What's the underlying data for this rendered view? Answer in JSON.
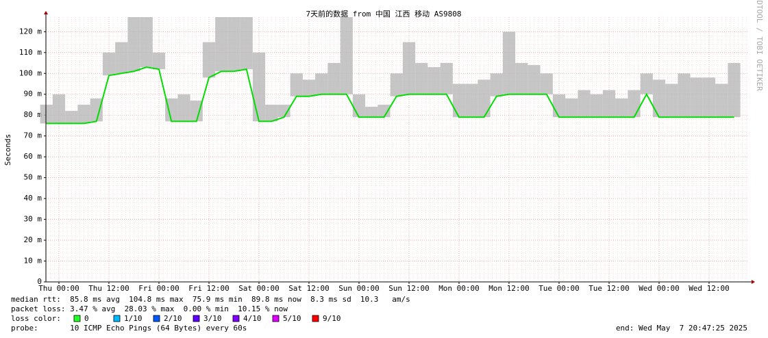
{
  "chart_data": {
    "type": "line",
    "title": "7天前的数据 from 中国 江西 移动 AS9808",
    "y_label": "Seconds",
    "watermark": "RRDTOOL / TOBI OETIKER",
    "categories": [
      null,
      "Thu 00:00",
      null,
      null,
      null,
      "Thu 12:00",
      null,
      null,
      null,
      "Fri 00:00",
      null,
      null,
      null,
      "Fri 12:00",
      null,
      null,
      null,
      "Sat 00:00",
      null,
      null,
      null,
      "Sat 12:00",
      null,
      null,
      null,
      "Sun 00:00",
      null,
      null,
      null,
      "Sun 12:00",
      null,
      null,
      null,
      "Mon 00:00",
      null,
      null,
      null,
      "Mon 12:00",
      null,
      null,
      null,
      "Tue 00:00",
      null,
      null,
      null,
      "Tue 12:00",
      null,
      null,
      null,
      "Wed 00:00",
      null,
      null,
      null,
      "Wed 12:00",
      null,
      null
    ],
    "series": [
      {
        "name": "median rtt",
        "color": "#00dd00",
        "values": [
          0.076,
          0.076,
          0.076,
          0.076,
          0.077,
          0.099,
          0.1,
          0.101,
          0.103,
          0.102,
          0.077,
          0.077,
          0.077,
          0.098,
          0.101,
          0.101,
          0.102,
          0.077,
          0.077,
          0.079,
          0.089,
          0.089,
          0.09,
          0.09,
          0.09,
          0.079,
          0.079,
          0.079,
          0.089,
          0.09,
          0.09,
          0.09,
          0.09,
          0.079,
          0.079,
          0.079,
          0.089,
          0.09,
          0.09,
          0.09,
          0.09,
          0.079,
          0.079,
          0.079,
          0.079,
          0.079,
          0.079,
          0.079,
          0.09,
          0.079,
          0.079,
          0.079,
          0.079,
          0.079,
          0.079,
          0.079
        ]
      }
    ],
    "smoke": {
      "color": "#b8b8b8",
      "values": [
        0.085,
        0.09,
        0.082,
        0.085,
        0.088,
        0.11,
        0.115,
        0.127,
        0.127,
        0.11,
        0.088,
        0.09,
        0.087,
        0.115,
        0.127,
        0.127,
        0.127,
        0.11,
        0.085,
        0.085,
        0.1,
        0.097,
        0.1,
        0.105,
        0.127,
        0.09,
        0.084,
        0.085,
        0.1,
        0.115,
        0.105,
        0.103,
        0.105,
        0.095,
        0.095,
        0.097,
        0.1,
        0.12,
        0.105,
        0.104,
        0.1,
        0.09,
        0.088,
        0.092,
        0.09,
        0.092,
        0.088,
        0.092,
        0.1,
        0.097,
        0.095,
        0.1,
        0.098,
        0.098,
        0.095,
        0.105
      ]
    },
    "ylim": [
      0,
      0.127
    ],
    "yticks": [
      0,
      {
        "value": 0.01,
        "label": "10 m"
      },
      {
        "value": 0.02,
        "label": "20 m"
      },
      {
        "value": 0.03,
        "label": "30 m"
      },
      {
        "value": 0.04,
        "label": "40 m"
      },
      {
        "value": 0.05,
        "label": "50 m"
      },
      {
        "value": 0.06,
        "label": "60 m"
      },
      {
        "value": 0.07,
        "label": "70 m"
      },
      {
        "value": 0.08,
        "label": "80 m"
      },
      {
        "value": 0.09,
        "label": "90 m"
      },
      {
        "value": 0.1,
        "label": "100 m"
      },
      {
        "value": 0.11,
        "label": "110 m"
      },
      {
        "value": 0.12,
        "label": "120 m"
      }
    ],
    "grid": true,
    "stats": [
      "median rtt:  85.8 ms avg  104.8 ms max  75.9 ms min  89.8 ms now  8.3 ms sd  10.3   am/s",
      "packet loss: 3.47 % avg  28.03 % max  0.00 % min  10.15 % now"
    ],
    "loss_legend": {
      "label": "loss color:",
      "items": [
        {
          "label": "0",
          "color": "#26ff26"
        },
        {
          "label": "1/10",
          "color": "#00b8ff"
        },
        {
          "label": "2/10",
          "color": "#0059ff"
        },
        {
          "label": "3/10",
          "color": "#5e00ff"
        },
        {
          "label": "4/10",
          "color": "#7e00ff"
        },
        {
          "label": "5/10",
          "color": "#dd00ff"
        },
        {
          "label": "9/10",
          "color": "#ff0000"
        }
      ]
    },
    "probe": "probe:       10 ICMP Echo Pings (64 Bytes) every 60s",
    "end": "end: Wed May  7 20:47:25 2025"
  }
}
